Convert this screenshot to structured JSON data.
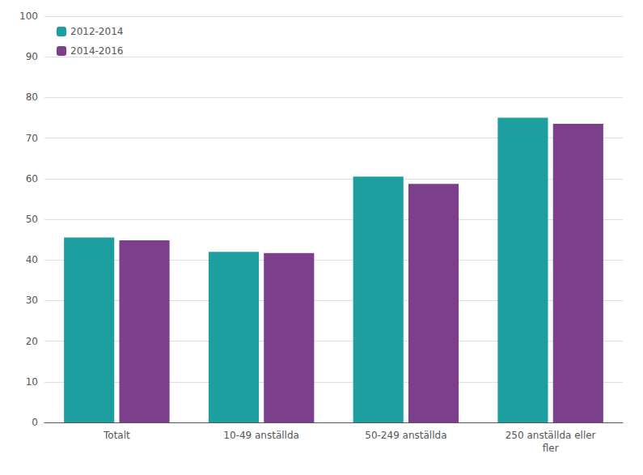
{
  "chart_data": {
    "type": "bar",
    "categories": [
      "Totalt",
      "10-49 anställda",
      "50-249 anställda",
      "250 anställda eller\nfler"
    ],
    "series": [
      {
        "name": "2012-2014",
        "color": "#1D9FA0",
        "values": [
          45.5,
          42.0,
          60.5,
          75.0
        ]
      },
      {
        "name": "2014-2016",
        "color": "#7B3F8C",
        "values": [
          44.8,
          41.7,
          58.7,
          73.5
        ]
      }
    ],
    "ylim": [
      0,
      100
    ],
    "yticks": [
      0,
      10,
      20,
      30,
      40,
      50,
      60,
      70,
      80,
      90,
      100
    ],
    "grid": true,
    "legend": "upper left"
  }
}
